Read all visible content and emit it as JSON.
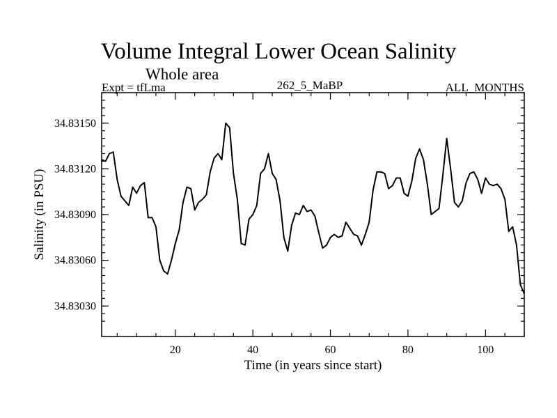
{
  "chart_data": {
    "type": "line",
    "title": "Volume Integral Lower Ocean Salinity",
    "subtitle": "Whole area",
    "header_left": "Expt = tfLma",
    "header_center": "262_5_MaBP",
    "header_right": "ALL_MONTHS",
    "xlabel": "Time (in years since start)",
    "ylabel": "Salinity (in PSU)",
    "xlim": [
      1,
      110
    ],
    "ylim": [
      34.8301,
      34.8317
    ],
    "x_ticks": [
      20,
      40,
      60,
      80,
      100
    ],
    "y_ticks": [
      34.8303,
      34.8306,
      34.8309,
      34.8312,
      34.8315
    ],
    "y_tick_labels": [
      "34.83030",
      "34.83060",
      "34.83090",
      "34.83120",
      "34.83150"
    ],
    "series": [
      {
        "name": "Salinity",
        "x": [
          1,
          2,
          3,
          4,
          5,
          6,
          7,
          8,
          9,
          10,
          11,
          12,
          13,
          14,
          15,
          16,
          17,
          18,
          19,
          20,
          21,
          22,
          23,
          24,
          25,
          26,
          27,
          28,
          29,
          30,
          31,
          32,
          33,
          34,
          35,
          36,
          37,
          38,
          39,
          40,
          41,
          42,
          43,
          44,
          45,
          46,
          47,
          48,
          49,
          50,
          51,
          52,
          53,
          54,
          55,
          56,
          57,
          58,
          59,
          60,
          61,
          62,
          63,
          64,
          65,
          66,
          67,
          68,
          69,
          70,
          71,
          72,
          73,
          74,
          75,
          76,
          77,
          78,
          79,
          80,
          81,
          82,
          83,
          84,
          85,
          86,
          87,
          88,
          89,
          90,
          91,
          92,
          93,
          94,
          95,
          96,
          97,
          98,
          99,
          100,
          101,
          102,
          103,
          104,
          105,
          106,
          107,
          108,
          109,
          110
        ],
        "values": [
          34.83126,
          34.83125,
          34.8313,
          34.83131,
          34.83113,
          34.83102,
          34.83099,
          34.83096,
          34.83108,
          34.83104,
          34.83109,
          34.83111,
          34.83088,
          34.83088,
          34.83082,
          34.8306,
          34.83053,
          34.83051,
          34.8306,
          34.83071,
          34.8308,
          34.83098,
          34.83108,
          34.83107,
          34.83093,
          34.83098,
          34.831,
          34.83103,
          34.83118,
          34.83127,
          34.8313,
          34.83126,
          34.8315,
          34.83147,
          34.83117,
          34.831,
          34.83071,
          34.8307,
          34.83087,
          34.8309,
          34.83096,
          34.83117,
          34.8312,
          34.8313,
          34.83117,
          34.83113,
          34.83099,
          34.83075,
          34.83066,
          34.83083,
          34.83091,
          34.8309,
          34.83096,
          34.83092,
          34.83093,
          34.83089,
          34.83078,
          34.83068,
          34.8307,
          34.83075,
          34.83077,
          34.83075,
          34.83076,
          34.83085,
          34.83081,
          34.83077,
          34.83076,
          34.8307,
          34.83077,
          34.83085,
          34.83106,
          34.83118,
          34.83118,
          34.83117,
          34.83107,
          34.83109,
          34.83114,
          34.83114,
          34.83104,
          34.83102,
          34.83112,
          34.83127,
          34.83133,
          34.83126,
          34.8311,
          34.8309,
          34.83092,
          34.83094,
          34.83116,
          34.8314,
          34.8312,
          34.83098,
          34.83095,
          34.83099,
          34.83111,
          34.83117,
          34.83118,
          34.83113,
          34.83104,
          34.83114,
          34.8311,
          34.83109,
          34.8311,
          34.83107,
          34.831,
          34.83079,
          34.83082,
          34.8307,
          34.83044,
          34.83038
        ]
      }
    ]
  }
}
